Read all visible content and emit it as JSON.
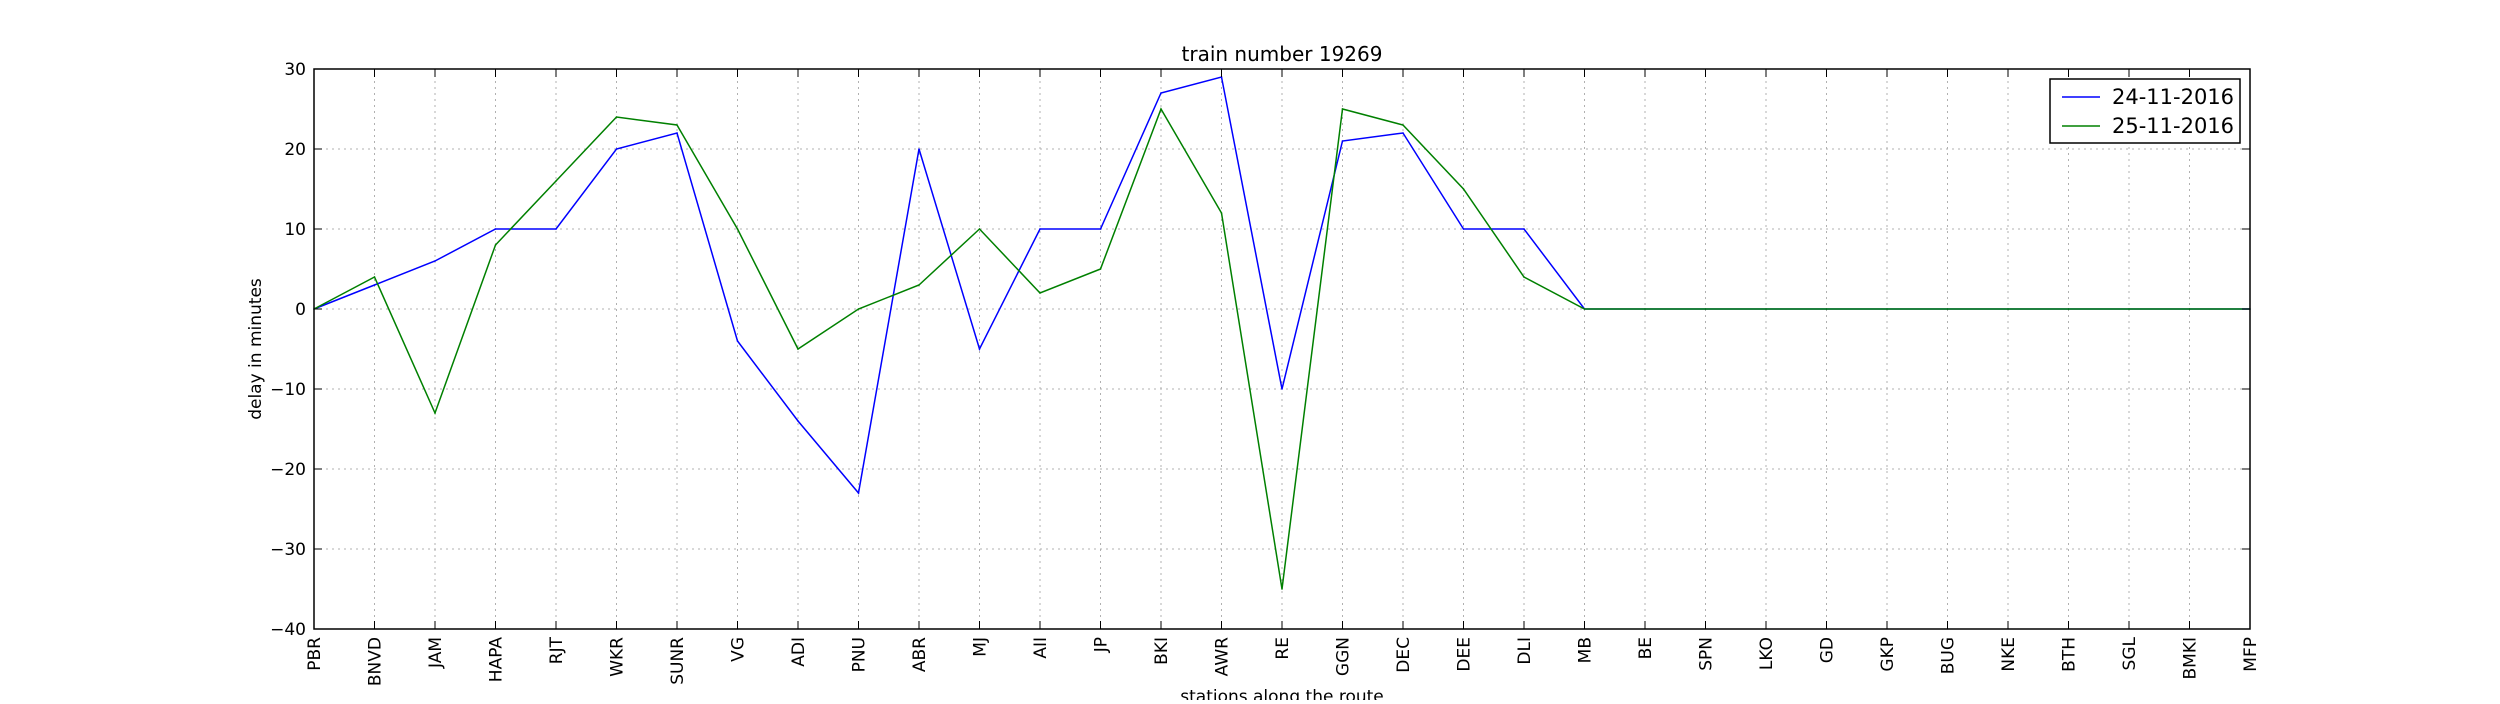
{
  "chart_data": {
    "type": "line",
    "title": "train number 19269",
    "xlabel": "stations along the route",
    "ylabel": "delay in minutes",
    "ylim": [
      -40,
      30
    ],
    "yticks": [
      -40,
      -30,
      -20,
      -10,
      0,
      10,
      20,
      30
    ],
    "ytick_labels": [
      "−40",
      "−30",
      "−20",
      "−10",
      "0",
      "10",
      "20",
      "30"
    ],
    "grid": true,
    "legend_position": "top-right",
    "categories": [
      "PBR",
      "BNVD",
      "JAM",
      "HAPA",
      "RJT",
      "WKR",
      "SUNR",
      "VG",
      "ADI",
      "PNU",
      "ABR",
      "MJ",
      "AII",
      "JP",
      "BKI",
      "AWR",
      "RE",
      "GGN",
      "DEC",
      "DEE",
      "DLI",
      "MB",
      "BE",
      "SPN",
      "LKO",
      "GD",
      "GKP",
      "BUG",
      "NKE",
      "BTH",
      "SGL",
      "BMKI",
      "MFP"
    ],
    "series": [
      {
        "name": "24-11-2016",
        "color": "#0000ff",
        "values": [
          0,
          3,
          6,
          10,
          10,
          20,
          22,
          -4,
          -14,
          -23,
          20,
          -5,
          10,
          10,
          27,
          29,
          -10,
          21,
          22,
          10,
          10,
          0,
          0,
          0,
          0,
          0,
          0,
          0,
          0,
          0,
          0,
          0,
          0
        ]
      },
      {
        "name": "25-11-2016",
        "color": "#008000",
        "values": [
          0,
          4,
          -13,
          8,
          16,
          24,
          23,
          10,
          -5,
          0,
          3,
          10,
          2,
          5,
          25,
          12,
          -35,
          25,
          23,
          15,
          4,
          0,
          0,
          0,
          0,
          0,
          0,
          0,
          0,
          0,
          0,
          0,
          0
        ]
      }
    ]
  }
}
